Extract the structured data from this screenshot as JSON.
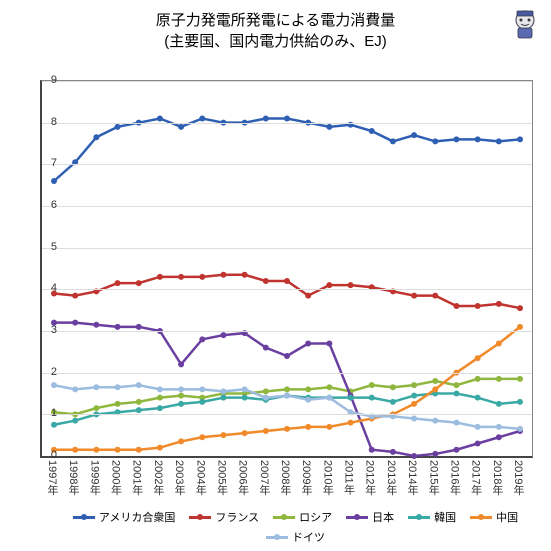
{
  "title_line1": "原子力発電所発電による電力消費量",
  "title_line2": "(主要国、国内電力供給のみ、EJ)",
  "chart": {
    "type": "line",
    "ylim": [
      0,
      9
    ],
    "ytick_step": 1,
    "yticks": [
      "0",
      "1",
      "2",
      "3",
      "4",
      "5",
      "6",
      "7",
      "8",
      "9"
    ],
    "xlabels": [
      "1997年",
      "1998年",
      "1999年",
      "2000年",
      "2001年",
      "2002年",
      "2003年",
      "2004年",
      "2005年",
      "2006年",
      "2007年",
      "2008年",
      "2009年",
      "2010年",
      "2011年",
      "2012年",
      "2013年",
      "2014年",
      "2015年",
      "2016年",
      "2017年",
      "2018年",
      "2019年"
    ],
    "background_color": "#ffffff",
    "grid_color": "#dddddd",
    "axis_color": "#444444",
    "marker_radius": 3,
    "line_width": 2.5,
    "series": [
      {
        "name": "アメリカ合衆国",
        "color": "#2f5fb3",
        "values": [
          6.6,
          7.05,
          7.65,
          7.9,
          8.0,
          8.1,
          7.9,
          8.1,
          8.0,
          8.0,
          8.1,
          8.1,
          8.0,
          7.9,
          7.95,
          7.8,
          7.55,
          7.7,
          7.55,
          7.6,
          7.6,
          7.55,
          7.6
        ]
      },
      {
        "name": "フランス",
        "color": "#c0342f",
        "values": [
          3.9,
          3.85,
          3.95,
          4.15,
          4.15,
          4.3,
          4.3,
          4.3,
          4.35,
          4.35,
          4.2,
          4.2,
          3.85,
          4.1,
          4.1,
          4.05,
          3.95,
          3.85,
          3.85,
          3.6,
          3.6,
          3.65,
          3.55
        ]
      },
      {
        "name": "ロシア",
        "color": "#8fb73e",
        "values": [
          1.05,
          1.0,
          1.15,
          1.25,
          1.3,
          1.4,
          1.45,
          1.4,
          1.5,
          1.5,
          1.55,
          1.6,
          1.6,
          1.65,
          1.55,
          1.7,
          1.65,
          1.7,
          1.8,
          1.7,
          1.85,
          1.85,
          1.85
        ]
      },
      {
        "name": "日本",
        "color": "#6b3fa0",
        "values": [
          3.2,
          3.2,
          3.15,
          3.1,
          3.1,
          3.0,
          2.2,
          2.8,
          2.9,
          2.95,
          2.6,
          2.4,
          2.7,
          2.7,
          1.45,
          0.15,
          0.1,
          0.0,
          0.05,
          0.15,
          0.3,
          0.45,
          0.6
        ]
      },
      {
        "name": "韓国",
        "color": "#3aa9a5",
        "values": [
          0.75,
          0.85,
          1.0,
          1.05,
          1.1,
          1.15,
          1.25,
          1.3,
          1.4,
          1.4,
          1.35,
          1.45,
          1.4,
          1.4,
          1.4,
          1.4,
          1.3,
          1.45,
          1.5,
          1.5,
          1.4,
          1.25,
          1.3
        ]
      },
      {
        "name": "中国",
        "color": "#f08a2a",
        "values": [
          0.15,
          0.15,
          0.15,
          0.15,
          0.15,
          0.2,
          0.35,
          0.45,
          0.5,
          0.55,
          0.6,
          0.65,
          0.7,
          0.7,
          0.8,
          0.9,
          1.0,
          1.25,
          1.6,
          2.0,
          2.35,
          2.7,
          3.1
        ]
      },
      {
        "name": "ドイツ",
        "color": "#9cbce0",
        "values": [
          1.7,
          1.6,
          1.65,
          1.65,
          1.7,
          1.6,
          1.6,
          1.6,
          1.55,
          1.6,
          1.4,
          1.45,
          1.35,
          1.4,
          1.05,
          0.95,
          0.95,
          0.9,
          0.85,
          0.8,
          0.7,
          0.7,
          0.65
        ]
      }
    ]
  }
}
